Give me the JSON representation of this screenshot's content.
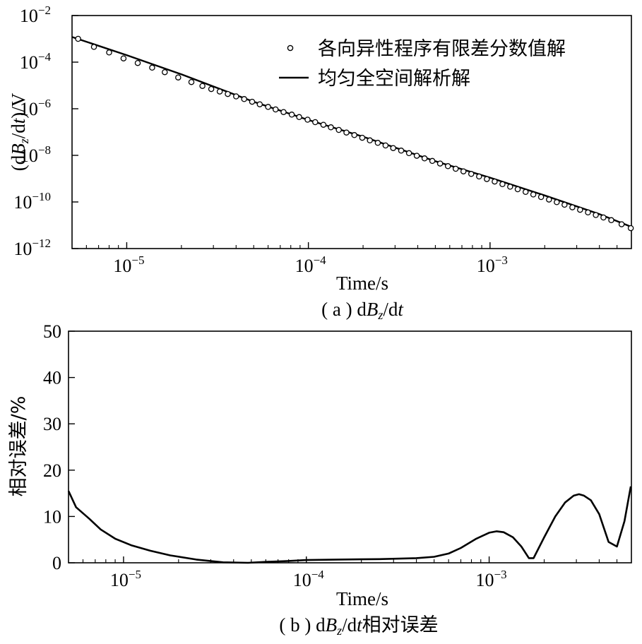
{
  "chart_data": [
    {
      "type": "line",
      "panel_caption": {
        "prefix": "( a ) d",
        "b": "B",
        "sub": "z",
        "mid": "/d",
        "t": "t",
        "suffix": ""
      },
      "ylabel": {
        "prefix": "(d",
        "b": "B",
        "sub": "z",
        "mid": "/d",
        "t": "t",
        "suffix": ")/V"
      },
      "xlabel": "Time/s",
      "x_scale": "log",
      "y_scale": "log",
      "xlim": [
        5e-06,
        0.006
      ],
      "ylim": [
        1e-12,
        0.01
      ],
      "x_ticks": [
        {
          "value": 1e-05,
          "base": "10",
          "exp": "−5"
        },
        {
          "value": 0.0001,
          "base": "10",
          "exp": "−4"
        },
        {
          "value": 0.001,
          "base": "10",
          "exp": "−3"
        }
      ],
      "y_ticks": [
        {
          "value": 0.01,
          "base": "10",
          "exp": "−2"
        },
        {
          "value": 0.0001,
          "base": "10",
          "exp": "−4"
        },
        {
          "value": 1e-06,
          "base": "10",
          "exp": "−6"
        },
        {
          "value": 1e-08,
          "base": "10",
          "exp": "−8"
        },
        {
          "value": 1e-10,
          "base": "10",
          "exp": "−10"
        },
        {
          "value": 1e-12,
          "base": "10",
          "exp": "−12"
        }
      ],
      "legend": {
        "position": "top-right",
        "entries": [
          "各向异性程序有限差分数值解",
          "均匀全空间解析解"
        ]
      },
      "series": [
        {
          "name": "各向异性程序有限差分数值解",
          "style": "markers",
          "x": [
            5.4e-06,
            6.6e-06,
            8e-06,
            9.6e-06,
            1.15e-05,
            1.38e-05,
            1.62e-05,
            1.92e-05,
            2.27e-05,
            2.61e-05,
            2.92e-05,
            3.25e-05,
            3.6e-05,
            4e-05,
            4.43e-05,
            4.9e-05,
            5.4e-05,
            6e-05,
            6.6e-05,
            7.3e-05,
            8.1e-05,
            8.9e-05,
            9.9e-05,
            0.000109,
            0.000121,
            0.000133,
            0.000147,
            0.000162,
            0.000179,
            0.000198,
            0.000218,
            0.000241,
            0.000266,
            0.000293,
            0.000324,
            0.000358,
            0.000395,
            0.000436,
            0.000481,
            0.000531,
            0.000586,
            0.000647,
            0.000714,
            0.000788,
            0.00087,
            0.00096,
            0.00106,
            0.00117,
            0.00129,
            0.00142,
            0.00157,
            0.00173,
            0.00191,
            0.00211,
            0.00233,
            0.00257,
            0.00284,
            0.00313,
            0.00346,
            0.00382,
            0.00421,
            0.00465,
            0.0053,
            0.00595
          ],
          "y": [
            0.001,
            0.00045,
            0.00026,
            0.000145,
            9.2e-05,
            5.8e-05,
            3.7e-05,
            2.2e-05,
            1.4e-05,
            9.5e-06,
            7e-06,
            5.5e-06,
            4.3e-06,
            3.4e-06,
            2.6e-06,
            2e-06,
            1.55e-06,
            1.2e-06,
            9.3e-07,
            7.2e-07,
            5.6e-07,
            4.4e-07,
            3.4e-07,
            2.65e-07,
            2.05e-07,
            1.6e-07,
            1.23e-07,
            9.5e-08,
            7.4e-08,
            5.7e-08,
            4.4e-08,
            3.45e-08,
            2.65e-08,
            2.05e-08,
            1.6e-08,
            1.24e-08,
            9.6e-09,
            7.4e-09,
            5.75e-09,
            4.45e-09,
            3.45e-09,
            2.65e-09,
            2.05e-09,
            1.6e-09,
            1.24e-09,
            9.6e-10,
            7.5e-10,
            5.8e-10,
            4.5e-10,
            3.5e-10,
            2.7e-10,
            2.1e-10,
            1.63e-10,
            1.27e-10,
            9.8e-11,
            7.6e-11,
            5.9e-11,
            4.6e-11,
            3.55e-11,
            2.75e-11,
            2.15e-11,
            1.65e-11,
            1.1e-11,
            7.5e-12
          ]
        },
        {
          "name": "均匀全空间解析解",
          "style": "line",
          "x": [
            5e-06,
            1e-05,
            2e-05,
            5e-05,
            0.0001,
            0.0002,
            0.0005,
            0.001,
            0.002,
            0.004,
            0.006
          ],
          "y": [
            0.0012,
            0.0002,
            3e-05,
            2e-06,
            3.3e-07,
            6.3e-08,
            5.6e-09,
            1.1e-09,
            1.9e-10,
            3e-11,
            8.5e-12
          ]
        }
      ]
    },
    {
      "type": "line",
      "panel_caption": {
        "prefix": "( b ) d",
        "b": "B",
        "sub": "z",
        "mid": "/d",
        "t": "t",
        "suffix": "相对误差"
      },
      "ylabel": "相对误差/%",
      "xlabel": "Time/s",
      "x_scale": "log",
      "y_scale": "linear",
      "xlim": [
        5e-06,
        0.006
      ],
      "ylim": [
        0,
        50
      ],
      "x_ticks": [
        {
          "value": 1e-05,
          "base": "10",
          "exp": "−5"
        },
        {
          "value": 0.0001,
          "base": "10",
          "exp": "−4"
        },
        {
          "value": 0.001,
          "base": "10",
          "exp": "−3"
        }
      ],
      "y_ticks": [
        0,
        10,
        20,
        30,
        40,
        50
      ],
      "series": [
        {
          "x": [
            5e-06,
            5.5e-06,
            6.5e-06,
            7.5e-06,
            9e-06,
            1.1e-05,
            1.4e-05,
            1.8e-05,
            2.5e-05,
            3.5e-05,
            4.8e-05,
            6e-05,
            8e-05,
            0.0001,
            0.00015,
            0.00025,
            0.0004,
            0.0005,
            0.0006,
            0.0007,
            0.00085,
            0.001,
            0.0011,
            0.0012,
            0.00135,
            0.0015,
            0.00165,
            0.00175,
            0.002,
            0.0023,
            0.0026,
            0.0029,
            0.0031,
            0.0033,
            0.0036,
            0.004,
            0.0045,
            0.005,
            0.0055,
            0.00595
          ],
          "y": [
            15.5,
            12.0,
            9.5,
            7.2,
            5.2,
            3.8,
            2.6,
            1.6,
            0.7,
            0.1,
            0.0,
            0.2,
            0.4,
            0.6,
            0.7,
            0.8,
            1.0,
            1.3,
            2.0,
            3.2,
            5.2,
            6.5,
            6.8,
            6.6,
            5.5,
            3.5,
            1.0,
            1.0,
            5.5,
            10.0,
            13.0,
            14.5,
            14.8,
            14.5,
            13.5,
            10.5,
            4.5,
            3.5,
            9.0,
            16.5
          ]
        }
      ]
    }
  ]
}
